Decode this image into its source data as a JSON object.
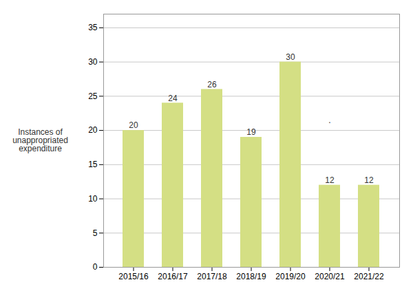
{
  "chart_data": {
    "type": "bar",
    "categories": [
      "2015/16",
      "2016/17",
      "2017/18",
      "2018/19",
      "2019/20",
      "2020/21",
      "2021/22"
    ],
    "values": [
      20,
      24,
      26,
      19,
      30,
      12,
      12
    ],
    "color": "#d4df84",
    "ylabel": "Instances of\nunappropriated\nexpenditure",
    "ylim": [
      0,
      37
    ],
    "yticks": [
      0,
      5,
      10,
      15,
      20,
      25,
      30,
      35
    ],
    "grid": true,
    "data_labels": true,
    "annotations": [
      {
        "text": ".",
        "x": "2020/21",
        "y": 21.5
      }
    ]
  }
}
